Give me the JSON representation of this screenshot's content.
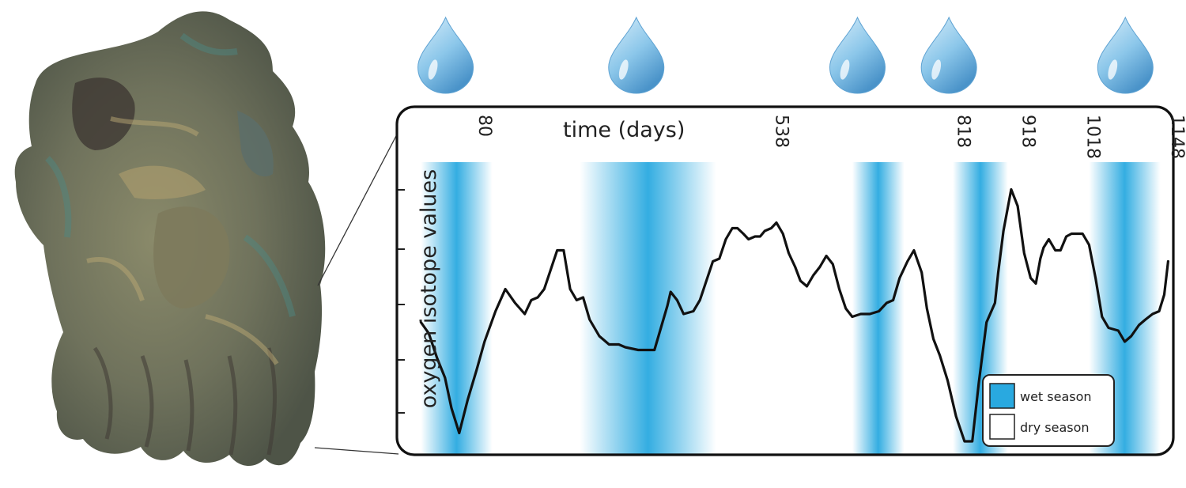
{
  "chart_data": {
    "type": "line",
    "xlabel": "time (days)",
    "ylabel": "oxygen isotope values",
    "x_ticks": [
      80,
      538,
      818,
      918,
      1018,
      1148
    ],
    "x_tick_labels": [
      "80",
      "538",
      "818",
      "918",
      "1018",
      "1148"
    ],
    "xlim": [
      -20,
      1160
    ],
    "ylim": [
      0,
      100
    ],
    "y_tick_labels_shown": false,
    "grid": false,
    "legend": {
      "placement": "bottom-right",
      "items": [
        {
          "label": "wet season",
          "color": "#29a9e0"
        },
        {
          "label": "dry season",
          "color": "#ffffff"
        }
      ]
    },
    "wet_seasons": [
      {
        "start": 0,
        "end": 110
      },
      {
        "start": 245,
        "end": 455
      },
      {
        "start": 665,
        "end": 745
      },
      {
        "start": 820,
        "end": 905
      },
      {
        "start": 1030,
        "end": 1140
      }
    ],
    "rainfall_markers_x": [
      38,
      332,
      673,
      814,
      1086
    ],
    "series": [
      {
        "color": "#111111",
        "x": [
          0,
          12,
          25,
          37,
          47,
          59,
          72,
          86,
          98,
          115,
          130,
          145,
          160,
          170,
          180,
          190,
          200,
          210,
          220,
          230,
          240,
          250,
          260,
          275,
          290,
          305,
          315,
          335,
          350,
          360,
          370,
          380,
          385,
          395,
          405,
          420,
          430,
          440,
          450,
          460,
          470,
          480,
          488,
          497,
          505,
          515,
          523,
          530,
          540,
          548,
          558,
          567,
          577,
          585,
          595,
          605,
          615,
          625,
          635,
          645,
          655,
          665,
          678,
          692,
          706,
          718,
          728,
          738,
          750,
          760,
          772,
          780,
          790,
          800,
          812,
          825,
          838,
          850,
          860,
          872,
          885,
          890,
          898,
          910,
          920,
          930,
          940,
          948,
          955,
          960,
          968,
          978,
          986,
          995,
          1003,
          1010,
          1020,
          1030,
          1040,
          1050,
          1060,
          1075,
          1085,
          1095,
          1107,
          1117,
          1128,
          1138,
          1146,
          1152
        ],
        "y": [
          45,
          41,
          32,
          25,
          14,
          5,
          17,
          28,
          38,
          49,
          57,
          52,
          48,
          53,
          54,
          57,
          64,
          71,
          71,
          57,
          53,
          54,
          46,
          40,
          37,
          37,
          36,
          35,
          35,
          35,
          43,
          51,
          56,
          53,
          48,
          49,
          53,
          60,
          67,
          68,
          75,
          79,
          79,
          77,
          75,
          76,
          76,
          78,
          79,
          81,
          77,
          70,
          65,
          60,
          58,
          62,
          65,
          69,
          66,
          57,
          50,
          47,
          48,
          48,
          49,
          52,
          53,
          61,
          67,
          71,
          63,
          50,
          39,
          33,
          24,
          11,
          2,
          2,
          23,
          45,
          52,
          63,
          78,
          93,
          87,
          70,
          61,
          59,
          68,
          72,
          75,
          71,
          71,
          76,
          77,
          77,
          77,
          73,
          61,
          47,
          43,
          42,
          38,
          40,
          44,
          46,
          48,
          49,
          55,
          67
        ]
      }
    ]
  }
}
